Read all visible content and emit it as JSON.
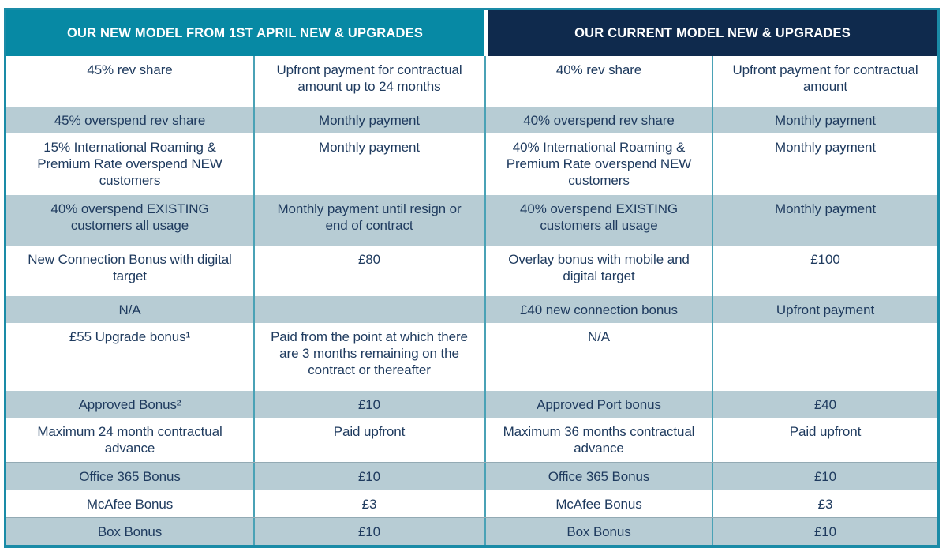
{
  "colors": {
    "teal": "#0789a4",
    "navy": "#0f2a4d",
    "shaded": "#b7ccd4",
    "outer-border": "#1a8ba7",
    "divider": "#4aa2b6",
    "text": "#1e3a5e"
  },
  "table": {
    "left_header": "OUR NEW MODEL FROM 1ST APRIL NEW & UPGRADES",
    "right_header": "OUR CURRENT MODEL NEW & UPGRADES",
    "rows": [
      {
        "cells": [
          "45% rev share",
          "Upfront payment for contractual amount up to 24 months",
          "40% rev share",
          "Upfront payment for contractual amount"
        ]
      },
      {
        "cells": [
          "45% overspend rev share",
          "Monthly payment",
          "40% overspend rev share",
          "Monthly payment"
        ]
      },
      {
        "cells": [
          "15% International Roaming & Premium Rate overspend NEW customers",
          "Monthly payment",
          "40% International Roaming & Premium Rate overspend NEW customers",
          "Monthly payment"
        ]
      },
      {
        "cells": [
          "40% overspend EXISTING customers all usage",
          "Monthly payment until resign or end of contract",
          "40% overspend EXISTING customers all usage",
          "Monthly payment"
        ]
      },
      {
        "cells": [
          "New Connection Bonus with digital target",
          "£80",
          "Overlay bonus with mobile and digital target",
          "£100"
        ]
      },
      {
        "cells": [
          "N/A",
          "",
          "£40 new connection bonus",
          "Upfront payment"
        ]
      },
      {
        "cells": [
          "£55 Upgrade bonus¹",
          "Paid from the point at which there are 3 months remaining on the contract or thereafter",
          "N/A",
          ""
        ]
      },
      {
        "cells": [
          "Approved Bonus²",
          "£10",
          "Approved Port bonus",
          "£40"
        ]
      },
      {
        "cells": [
          "Maximum 24 month contractual advance",
          "Paid upfront",
          "Maximum 36 months contractual advance",
          "Paid upfront"
        ]
      },
      {
        "cells": [
          "Office 365 Bonus",
          "£10",
          "Office 365 Bonus",
          "£10"
        ]
      },
      {
        "cells": [
          "McAfee Bonus",
          "£3",
          "McAfee Bonus",
          "£3"
        ]
      },
      {
        "cells": [
          "Box Bonus",
          "£10",
          "Box Bonus",
          "£10"
        ]
      }
    ]
  }
}
